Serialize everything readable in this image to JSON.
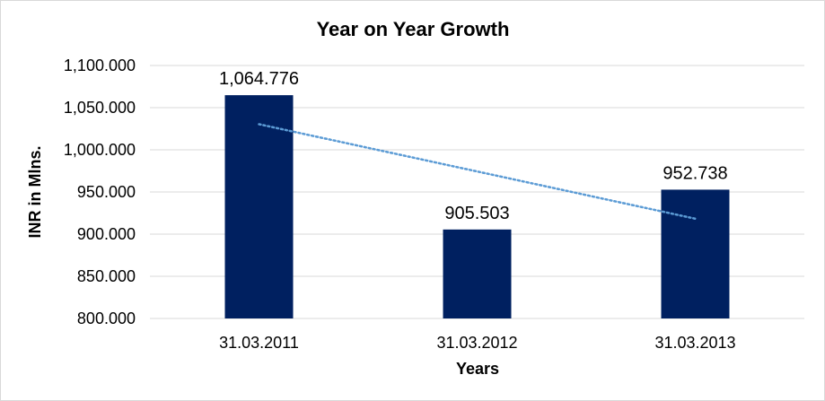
{
  "chart_data": {
    "type": "bar",
    "title": "Year on Year Growth",
    "xlabel": "Years",
    "ylabel": "INR in Mlns.",
    "categories": [
      "31.03.2011",
      "31.03.2012",
      "31.03.2013"
    ],
    "values": [
      1064.776,
      905.503,
      952.738
    ],
    "data_labels": [
      "1,064.776",
      "905.503",
      "952.738"
    ],
    "ylim": [
      800,
      1100
    ],
    "y_ticks": [
      800,
      850,
      900,
      950,
      1000,
      1050,
      1100
    ],
    "y_tick_labels": [
      "800.000",
      "850.000",
      "900.000",
      "950.000",
      "1,000.000",
      "1,050.000",
      "1,100.000"
    ],
    "grid": true,
    "trendline": {
      "type": "linear",
      "style": "dotted"
    },
    "colors": {
      "bar": "#002060",
      "trendline": "#5b9bd5",
      "grid": "#d9d9d9"
    }
  }
}
